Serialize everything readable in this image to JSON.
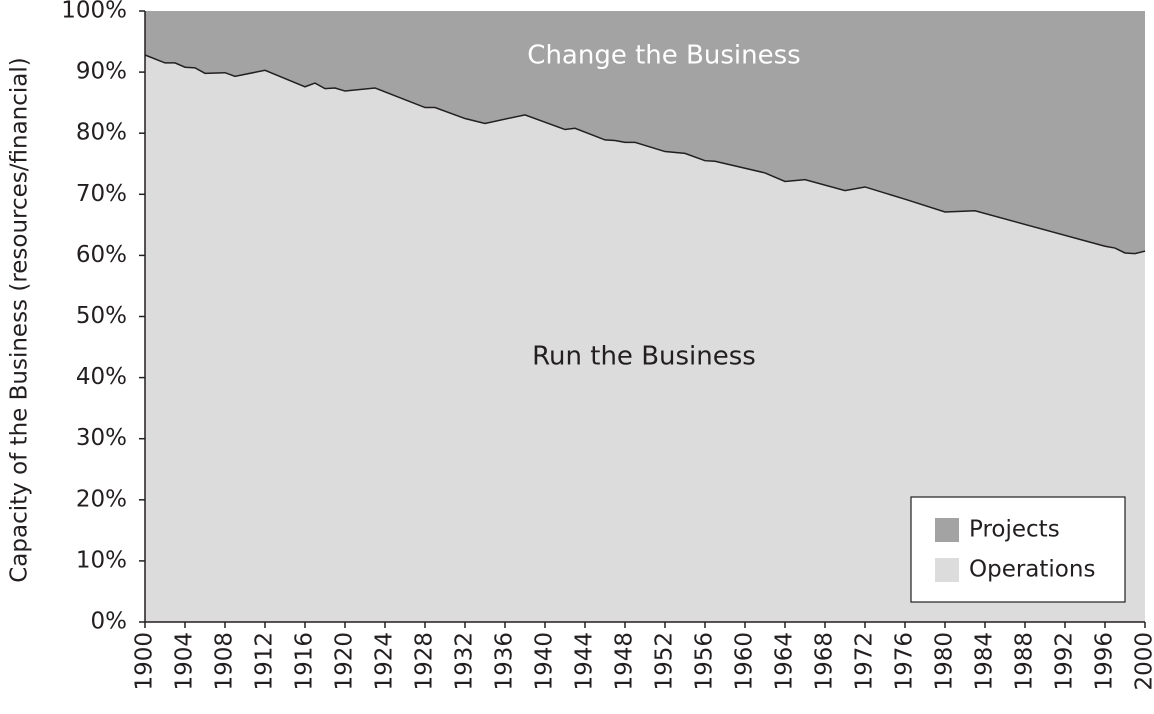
{
  "chart_data": {
    "type": "stacked_area",
    "y_label": "Capacity of the Business (resources/financial)",
    "annotations": [
      "Change the Business",
      "Run the Business"
    ],
    "x": [
      1900,
      1902,
      1903,
      1904,
      1905,
      1906,
      1908,
      1909,
      1912,
      1916,
      1917,
      1918,
      1919,
      1920,
      1923,
      1928,
      1929,
      1932,
      1934,
      1938,
      1942,
      1943,
      1946,
      1947,
      1948,
      1949,
      1952,
      1954,
      1956,
      1957,
      1962,
      1964,
      1966,
      1970,
      1972,
      1976,
      1980,
      1983,
      1996,
      1997,
      1998,
      1999,
      2000
    ],
    "series": [
      {
        "name": "Operations",
        "color": "#dcdcdc",
        "values": [
          92.8,
          91.5,
          91.5,
          90.8,
          90.7,
          89.8,
          89.9,
          89.3,
          90.3,
          87.6,
          88.2,
          87.3,
          87.4,
          86.9,
          87.4,
          84.2,
          84.2,
          82.4,
          81.6,
          83.0,
          80.6,
          80.8,
          78.9,
          78.8,
          78.5,
          78.5,
          77.0,
          76.7,
          75.5,
          75.4,
          73.5,
          72.1,
          72.4,
          70.6,
          71.2,
          69.2,
          67.1,
          67.3,
          61.5,
          61.2,
          60.4,
          60.3,
          60.7
        ]
      },
      {
        "name": "Projects",
        "color": "#a3a3a3",
        "values": [
          7.2,
          8.5,
          8.5,
          9.2,
          9.3,
          10.2,
          10.1,
          10.7,
          9.7,
          12.4,
          11.8,
          12.7,
          12.6,
          13.1,
          12.6,
          15.8,
          15.8,
          17.6,
          18.4,
          17.0,
          19.4,
          19.2,
          21.1,
          21.2,
          21.5,
          21.5,
          23.0,
          23.3,
          24.5,
          24.6,
          26.5,
          27.9,
          27.6,
          29.4,
          28.8,
          30.8,
          32.9,
          32.7,
          38.5,
          38.8,
          39.6,
          39.7,
          39.3
        ]
      }
    ],
    "xlim": [
      1900,
      2000
    ],
    "xticks": [
      1900,
      1904,
      1908,
      1912,
      1916,
      1920,
      1924,
      1928,
      1932,
      1936,
      1940,
      1944,
      1948,
      1952,
      1956,
      1960,
      1964,
      1968,
      1972,
      1976,
      1980,
      1984,
      1988,
      1992,
      1996,
      2000
    ],
    "ylim": [
      0,
      100
    ],
    "yticks": [
      {
        "value": 0,
        "label": "0%"
      },
      {
        "value": 10,
        "label": "10%"
      },
      {
        "value": 20,
        "label": "20%"
      },
      {
        "value": 30,
        "label": "30%"
      },
      {
        "value": 40,
        "label": "40%"
      },
      {
        "value": 50,
        "label": "50%"
      },
      {
        "value": 60,
        "label": "60%"
      },
      {
        "value": 70,
        "label": "70%"
      },
      {
        "value": 80,
        "label": "80%"
      },
      {
        "value": 90,
        "label": "90%"
      },
      {
        "value": 100,
        "label": "100%"
      }
    ],
    "line_color": "#231f20",
    "legend": "lower right"
  }
}
